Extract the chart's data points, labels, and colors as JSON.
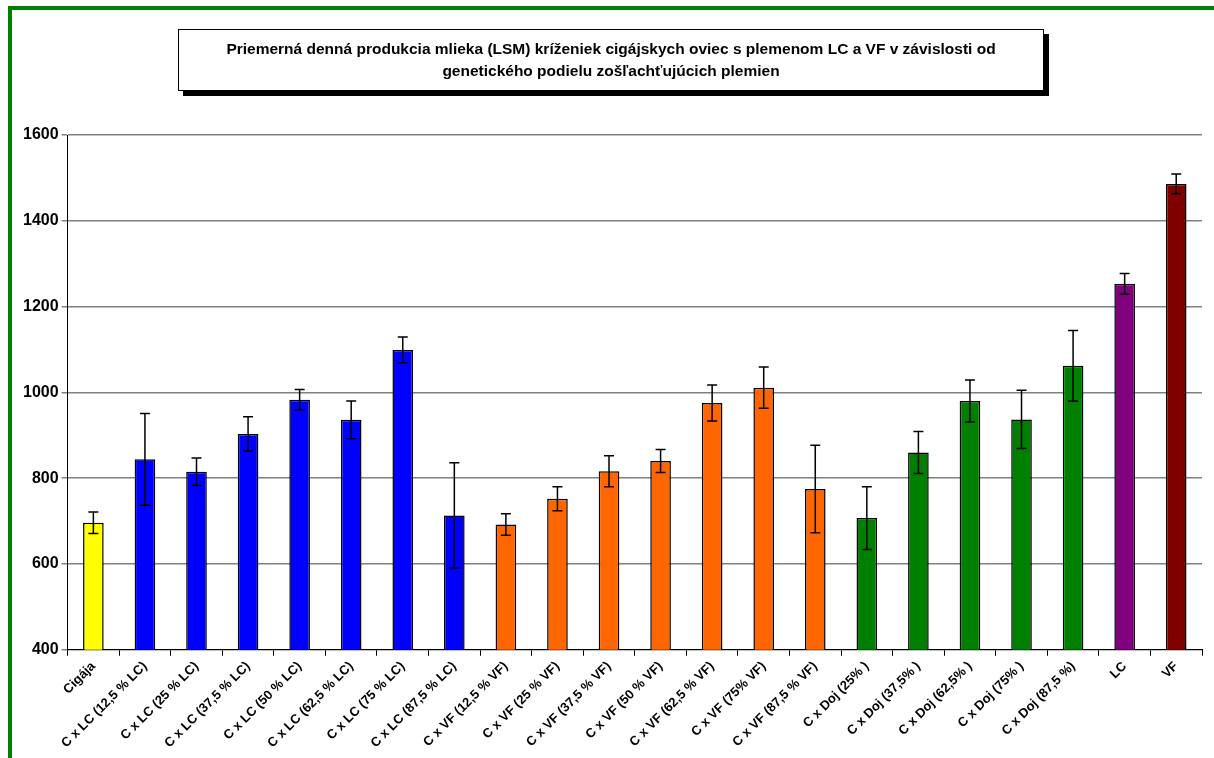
{
  "chart_data": {
    "type": "bar",
    "title": "Priemerná denná produkcia mlieka (LSM) kríženiek cigájskych oviec s plemenom LC a VF v závislosti od genetického podielu zošľachťujúcich plemien",
    "categories": [
      "Cigája",
      "C x LC (12,5 % LC)",
      "C x LC (25 % LC)",
      "C x LC (37,5 % LC)",
      "C x LC (50 % LC)",
      "C x LC (62,5 % LC)",
      "C x LC (75 % LC)",
      "C x LC (87,5 % LC)",
      "C x VF (12,5 % VF)",
      "C x VF (25 % VF)",
      "C x VF (37,5 % VF)",
      "C x VF (50 % VF)",
      "C x VF (62,5 % VF)",
      "C x VF (75% VF)",
      "C x VF (87,5 % VF)",
      "C x Doj (25% )",
      "C x Doj (37,5% )",
      "C x Doj (62,5% )",
      "C x Doj (75% )",
      "C x Doj (87,5 %)",
      "LC",
      "VF"
    ],
    "values": [
      696,
      844,
      815,
      903,
      983,
      936,
      1099,
      713,
      692,
      752,
      816,
      840,
      975,
      1011,
      775,
      707,
      860,
      980,
      937,
      1062,
      1253,
      1486
    ],
    "errors": [
      25,
      107,
      32,
      40,
      24,
      44,
      30,
      123,
      25,
      28,
      36,
      27,
      42,
      48,
      102,
      73,
      49,
      49,
      68,
      82,
      24,
      23
    ],
    "colors": [
      "#ffff00",
      "#0000ff",
      "#0000ff",
      "#0000ff",
      "#0000ff",
      "#0000ff",
      "#0000ff",
      "#0000ff",
      "#ff6600",
      "#ff6600",
      "#ff6600",
      "#ff6600",
      "#ff6600",
      "#ff6600",
      "#ff6600",
      "#008000",
      "#008000",
      "#008000",
      "#008000",
      "#008000",
      "#800080",
      "#800000"
    ],
    "ylim": [
      400,
      1600
    ],
    "yticks": [
      400,
      600,
      800,
      1000,
      1200,
      1400,
      1600
    ],
    "grid": "y",
    "legend": false
  }
}
